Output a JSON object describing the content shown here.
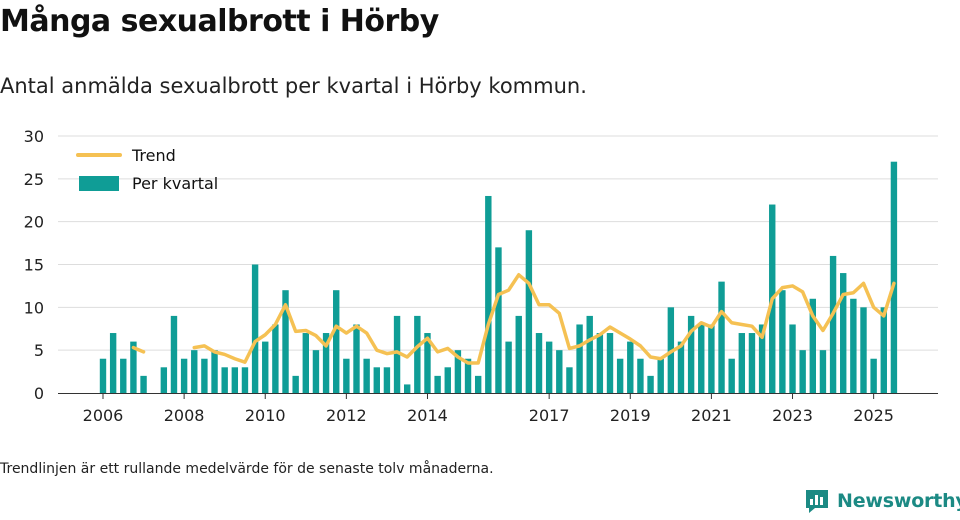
{
  "header": {
    "title": "Många sexualbrott i Hörby",
    "subtitle": "Antal anmälda sexualbrott per kvartal i Hörby kommun."
  },
  "footer": {
    "note": "Trendlinjen är ett rullande medelvärde för de senaste tolv månaderna.",
    "brand": "Newsworthy"
  },
  "colors": {
    "bar": "#0f9d96",
    "trend": "#f5c153",
    "grid": "#dddddd",
    "axis": "#333333",
    "brand": "#1c8a84"
  },
  "chart_data": {
    "type": "bar",
    "title": "Antal anmälda sexualbrott per kvartal i Hörby kommun.",
    "xlabel": "",
    "ylabel": "",
    "ylim": [
      0,
      30
    ],
    "yticks": [
      0,
      5,
      10,
      15,
      20,
      25,
      30
    ],
    "x_tick_labels": [
      "2006",
      "2008",
      "2010",
      "2012",
      "2014",
      "2017",
      "2019",
      "2021",
      "2023",
      "2025"
    ],
    "x_tick_periods": [
      "2006-Q1",
      "2008-Q1",
      "2010-Q1",
      "2012-Q1",
      "2014-Q1",
      "2017-Q1",
      "2019-Q1",
      "2021-Q1",
      "2023-Q1",
      "2025-Q1"
    ],
    "legend_position": "top-left",
    "grid": true,
    "periods": [
      "2006-Q1",
      "2006-Q2",
      "2006-Q3",
      "2006-Q4",
      "2007-Q1",
      "2007-Q2",
      "2007-Q3",
      "2007-Q4",
      "2008-Q1",
      "2008-Q2",
      "2008-Q3",
      "2008-Q4",
      "2009-Q1",
      "2009-Q2",
      "2009-Q3",
      "2009-Q4",
      "2010-Q1",
      "2010-Q2",
      "2010-Q3",
      "2010-Q4",
      "2011-Q1",
      "2011-Q2",
      "2011-Q3",
      "2011-Q4",
      "2012-Q1",
      "2012-Q2",
      "2012-Q3",
      "2012-Q4",
      "2013-Q1",
      "2013-Q2",
      "2013-Q3",
      "2013-Q4",
      "2014-Q1",
      "2014-Q2",
      "2014-Q3",
      "2014-Q4",
      "2015-Q1",
      "2015-Q2",
      "2015-Q3",
      "2015-Q4",
      "2016-Q1",
      "2016-Q2",
      "2016-Q3",
      "2016-Q4",
      "2017-Q1",
      "2017-Q2",
      "2017-Q3",
      "2017-Q4",
      "2018-Q1",
      "2018-Q2",
      "2018-Q3",
      "2018-Q4",
      "2019-Q1",
      "2019-Q2",
      "2019-Q3",
      "2019-Q4",
      "2020-Q1",
      "2020-Q2",
      "2020-Q3",
      "2020-Q4",
      "2021-Q1",
      "2021-Q2",
      "2021-Q3",
      "2021-Q4",
      "2022-Q1",
      "2022-Q2",
      "2022-Q3",
      "2022-Q4",
      "2023-Q1",
      "2023-Q2",
      "2023-Q3",
      "2023-Q4",
      "2024-Q1",
      "2024-Q2",
      "2024-Q3",
      "2024-Q4",
      "2025-Q1",
      "2025-Q2",
      "2025-Q3"
    ],
    "series": [
      {
        "name": "Per kvartal",
        "type": "bar",
        "values": [
          4,
          7,
          4,
          6,
          2,
          0,
          3,
          9,
          4,
          5,
          4,
          5,
          3,
          3,
          3,
          15,
          6,
          8,
          12,
          2,
          7,
          5,
          7,
          12,
          4,
          8,
          4,
          3,
          3,
          9,
          1,
          9,
          7,
          2,
          3,
          5,
          4,
          2,
          23,
          17,
          6,
          9,
          19,
          7,
          6,
          5,
          3,
          8,
          9,
          7,
          7,
          4,
          6,
          4,
          2,
          4,
          10,
          6,
          9,
          8,
          8,
          13,
          4,
          7,
          7,
          8,
          22,
          12,
          8,
          5,
          11,
          5,
          16,
          14,
          11,
          10,
          4,
          10,
          27
        ]
      },
      {
        "name": "Trend",
        "type": "line",
        "values": [
          null,
          null,
          null,
          5.3,
          4.8,
          null,
          null,
          null,
          null,
          5.3,
          5.5,
          4.8,
          4.5,
          4.0,
          3.6,
          6.0,
          6.8,
          8.0,
          10.3,
          7.2,
          7.3,
          6.7,
          5.5,
          7.8,
          7.0,
          7.8,
          7.0,
          5.0,
          4.6,
          4.8,
          4.2,
          5.4,
          6.4,
          4.8,
          5.2,
          4.2,
          3.5,
          3.5,
          8.0,
          11.5,
          12.0,
          13.8,
          12.8,
          10.3,
          10.3,
          9.3,
          5.2,
          5.5,
          6.2,
          6.8,
          7.7,
          7.0,
          6.3,
          5.5,
          4.2,
          4.0,
          4.8,
          5.5,
          7.2,
          8.2,
          7.7,
          9.5,
          8.2,
          8.0,
          7.8,
          6.5,
          11.0,
          12.3,
          12.5,
          11.8,
          9.0,
          7.3,
          9.3,
          11.5,
          11.7,
          12.8,
          10.0,
          9.0,
          12.8
        ]
      }
    ]
  }
}
